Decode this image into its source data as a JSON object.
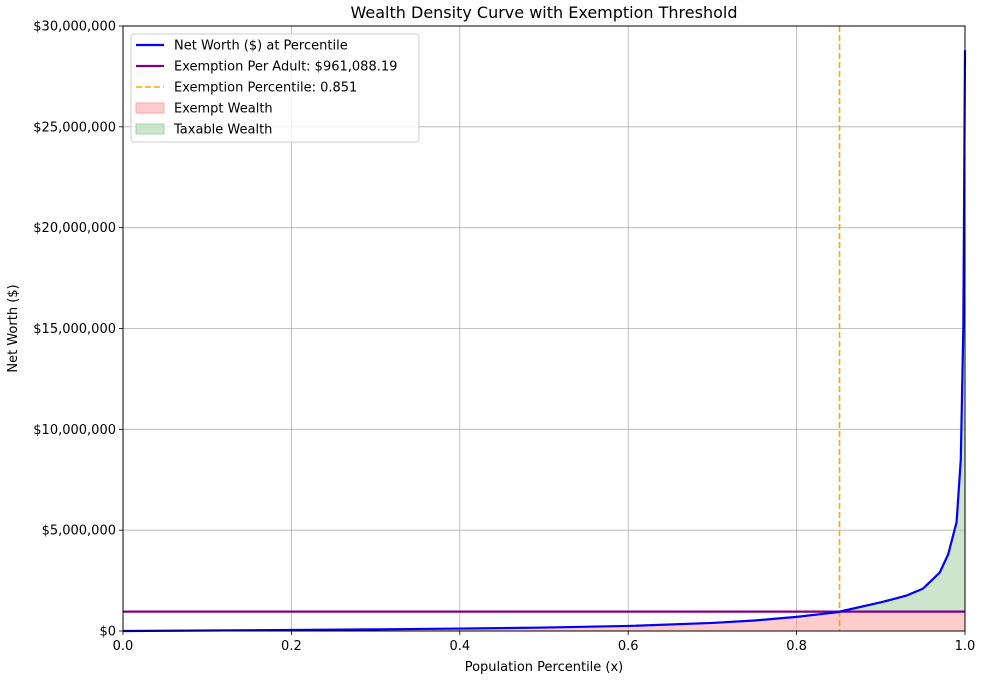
{
  "chart_data": {
    "type": "line",
    "title": "Wealth Density Curve with Exemption Threshold",
    "xlabel": "Population Percentile (x)",
    "ylabel": "Net Worth ($)",
    "xlim": [
      0.0,
      1.0
    ],
    "ylim": [
      0,
      30000000
    ],
    "grid": true,
    "legend_position": "upper-left",
    "x_ticks": [
      0.0,
      0.2,
      0.4,
      0.6,
      0.8,
      1.0
    ],
    "x_tick_labels": [
      "0.0",
      "0.2",
      "0.4",
      "0.6",
      "0.8",
      "1.0"
    ],
    "y_ticks": [
      0,
      5000000,
      10000000,
      15000000,
      20000000,
      25000000,
      30000000
    ],
    "y_tick_labels": [
      "$0",
      "$5,000,000",
      "$10,000,000",
      "$15,000,000",
      "$20,000,000",
      "$25,000,000",
      "$30,000,000"
    ],
    "series": [
      {
        "name": "Net Worth ($) at Percentile",
        "color": "#0000ff",
        "style": "solid",
        "x": [
          0.0,
          0.1,
          0.2,
          0.3,
          0.4,
          0.5,
          0.6,
          0.7,
          0.75,
          0.8,
          0.85,
          0.851,
          0.9,
          0.93,
          0.95,
          0.97,
          0.98,
          0.99,
          0.995,
          0.998,
          1.0
        ],
        "values": [
          0,
          25000,
          50000,
          80000,
          120000,
          170000,
          250000,
          400000,
          520000,
          700000,
          940000,
          961088,
          1420000,
          1750000,
          2100000,
          2900000,
          3800000,
          5400000,
          8500000,
          15000000,
          28800000
        ]
      },
      {
        "name": "Exemption Per Adult: $961,088.19",
        "color": "#800080",
        "style": "solid",
        "kind": "hline",
        "value": 961088.19
      },
      {
        "name": "Exemption Percentile: 0.851",
        "color": "#ffa500",
        "style": "dashed",
        "kind": "vline",
        "value": 0.851
      }
    ],
    "fills": [
      {
        "name": "Exempt Wealth",
        "color": "#ff9999",
        "opacity": 0.5
      },
      {
        "name": "Taxable Wealth",
        "color": "#99cc99",
        "opacity": 0.5
      }
    ]
  }
}
